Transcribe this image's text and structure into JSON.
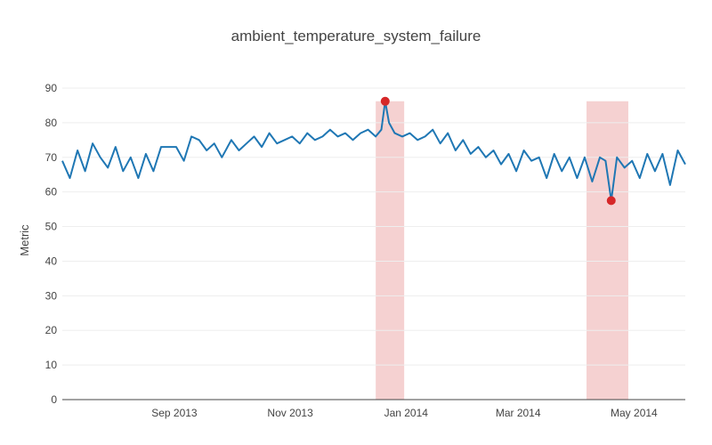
{
  "chart_data": {
    "type": "line",
    "title": "ambient_temperature_system_failure",
    "xlabel": "",
    "ylabel": "Metric",
    "x_axis_type": "date",
    "x_range": [
      "2013-07-04",
      "2014-05-28"
    ],
    "ylim": [
      0,
      90
    ],
    "y_ticks": [
      0,
      10,
      20,
      30,
      40,
      50,
      60,
      70,
      80,
      90
    ],
    "x_ticks": [
      {
        "date": "2013-09-01",
        "label": "Sep 2013"
      },
      {
        "date": "2013-11-01",
        "label": "Nov 2013"
      },
      {
        "date": "2014-01-01",
        "label": "Jan 2014"
      },
      {
        "date": "2014-03-01",
        "label": "Mar 2014"
      },
      {
        "date": "2014-05-01",
        "label": "May 2014"
      }
    ],
    "grid": true,
    "legend": "none",
    "colors": {
      "series": "#1f77b4",
      "anomaly_marker": "#d62728",
      "anomaly_window": "#f4cccc",
      "grid": "#eeeeee",
      "axis": "#444444"
    },
    "series": [
      {
        "x": [
          "2013-07-04",
          "2013-07-08",
          "2013-07-12",
          "2013-07-16",
          "2013-07-20",
          "2013-07-24",
          "2013-07-28",
          "2013-08-01",
          "2013-08-05",
          "2013-08-09",
          "2013-08-13",
          "2013-08-17",
          "2013-08-21",
          "2013-08-25",
          "2013-08-29",
          "2013-09-02",
          "2013-09-06",
          "2013-09-10",
          "2013-09-14",
          "2013-09-18",
          "2013-09-22",
          "2013-09-26",
          "2013-10-01",
          "2013-10-05",
          "2013-10-09",
          "2013-10-13",
          "2013-10-17",
          "2013-10-21",
          "2013-10-25",
          "2013-10-29",
          "2013-11-02",
          "2013-11-06",
          "2013-11-10",
          "2013-11-14",
          "2013-11-18",
          "2013-11-22",
          "2013-11-26",
          "2013-11-30",
          "2013-12-04",
          "2013-12-08",
          "2013-12-12",
          "2013-12-16",
          "2013-12-19",
          "2013-12-21",
          "2013-12-23",
          "2013-12-26",
          "2013-12-30",
          "2014-01-03",
          "2014-01-07",
          "2014-01-11",
          "2014-01-15",
          "2014-01-19",
          "2014-01-23",
          "2014-01-27",
          "2014-01-31",
          "2014-02-04",
          "2014-02-08",
          "2014-02-12",
          "2014-02-16",
          "2014-02-20",
          "2014-02-24",
          "2014-02-28",
          "2014-03-04",
          "2014-03-08",
          "2014-03-12",
          "2014-03-16",
          "2014-03-20",
          "2014-03-24",
          "2014-03-28",
          "2014-04-01",
          "2014-04-05",
          "2014-04-09",
          "2014-04-13",
          "2014-04-16",
          "2014-04-19",
          "2014-04-22",
          "2014-04-26",
          "2014-04-30",
          "2014-05-04",
          "2014-05-08",
          "2014-05-12",
          "2014-05-16",
          "2014-05-20",
          "2014-05-24",
          "2014-05-28"
        ],
        "y": [
          69,
          64,
          72,
          66,
          74,
          70,
          67,
          73,
          66,
          70,
          64,
          71,
          66,
          73,
          73,
          73,
          69,
          76,
          75,
          72,
          74,
          70,
          75,
          72,
          74,
          76,
          73,
          77,
          74,
          75,
          76,
          74,
          77,
          75,
          76,
          78,
          76,
          77,
          75,
          77,
          78,
          76,
          78,
          86.2,
          80,
          77,
          76,
          77,
          75,
          76,
          78,
          74,
          77,
          72,
          75,
          71,
          73,
          70,
          72,
          68,
          71,
          66,
          72,
          69,
          70,
          64,
          71,
          66,
          70,
          64,
          70,
          63,
          70,
          69,
          57.5,
          70,
          67,
          69,
          64,
          71,
          66,
          71,
          62,
          72,
          68
        ]
      }
    ],
    "anomaly_points": [
      {
        "x": "2013-12-21",
        "y": 86.2
      },
      {
        "x": "2014-04-19",
        "y": 57.5
      }
    ],
    "anomaly_windows": [
      {
        "start": "2013-12-16",
        "end": "2013-12-31"
      },
      {
        "start": "2014-04-06",
        "end": "2014-04-28"
      }
    ]
  }
}
